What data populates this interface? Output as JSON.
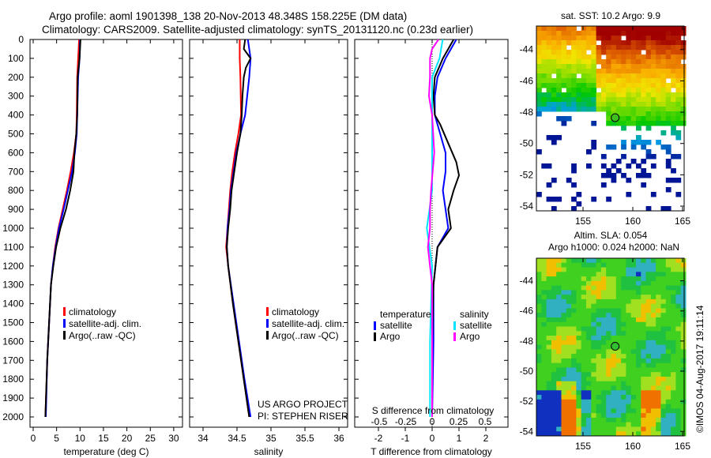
{
  "title_line1": "Argo profile: aoml 1901398_138 20-Nov-2013 48.348S 158.225E (DM data)",
  "title_line2": "Climatology: CARS2009. Satellite-adjusted climatology: synTS_20131120.nc (0.23d earlier)",
  "colors": {
    "climatology": "#ff0000",
    "satellite": "#0000ff",
    "argo": "#000000",
    "sal_satellite": "#00e5ff",
    "sal_argo": "#ff00ff"
  },
  "chart_data": [
    {
      "type": "line",
      "xlabel": "temperature (deg C)",
      "xlim": [
        -0.5,
        31.5
      ],
      "xticks": [
        "0",
        "5",
        "10",
        "15",
        "20",
        "25",
        "30"
      ],
      "ylim": [
        2050,
        0
      ],
      "yticks": [
        "0",
        "100",
        "200",
        "300",
        "400",
        "500",
        "600",
        "700",
        "800",
        "900",
        "1000",
        "1100",
        "1200",
        "1300",
        "1400",
        "1500",
        "1600",
        "1700",
        "1800",
        "1900",
        "2000"
      ],
      "legend": [
        "climatology",
        "satellite-adj. clim.",
        "Argo(..raw -QC)"
      ],
      "series": [
        {
          "name": "climatology",
          "points": [
            [
              0,
              9.8
            ],
            [
              100,
              9.6
            ],
            [
              200,
              9.4
            ],
            [
              400,
              9.3
            ],
            [
              500,
              9.2
            ],
            [
              600,
              8.7
            ],
            [
              700,
              8.0
            ],
            [
              800,
              7.2
            ],
            [
              900,
              6.3
            ],
            [
              1000,
              5.4
            ],
            [
              1100,
              4.7
            ],
            [
              1200,
              4.2
            ],
            [
              1300,
              3.8
            ],
            [
              1500,
              3.4
            ],
            [
              1700,
              3.0
            ],
            [
              2000,
              2.6
            ]
          ]
        },
        {
          "name": "satellite-adj. clim.",
          "points": [
            [
              0,
              10.0
            ],
            [
              100,
              9.9
            ],
            [
              200,
              9.6
            ],
            [
              400,
              9.4
            ],
            [
              500,
              9.3
            ],
            [
              600,
              8.9
            ],
            [
              700,
              8.3
            ],
            [
              800,
              7.4
            ],
            [
              900,
              6.5
            ],
            [
              1000,
              5.5
            ],
            [
              1100,
              4.8
            ],
            [
              1200,
              4.2
            ],
            [
              1300,
              3.8
            ],
            [
              1500,
              3.4
            ],
            [
              1700,
              3.0
            ],
            [
              2000,
              2.7
            ]
          ]
        },
        {
          "name": "Argo(..raw -QC)",
          "points": [
            [
              0,
              10.1
            ],
            [
              100,
              9.9
            ],
            [
              200,
              9.5
            ],
            [
              400,
              9.4
            ],
            [
              500,
              9.2
            ],
            [
              600,
              8.8
            ],
            [
              700,
              8.6
            ],
            [
              800,
              7.9
            ],
            [
              900,
              7.0
            ],
            [
              1000,
              5.8
            ],
            [
              1100,
              4.9
            ],
            [
              1200,
              4.3
            ],
            [
              1300,
              3.8
            ],
            [
              1500,
              3.4
            ],
            [
              1700,
              3.0
            ],
            [
              2000,
              2.6
            ]
          ]
        }
      ]
    },
    {
      "type": "line",
      "xlabel": "salinity",
      "xlim": [
        33.9,
        36.1
      ],
      "xticks": [
        "34",
        "34.5",
        "35",
        "35.5",
        "36"
      ],
      "ylim": [
        2050,
        0
      ],
      "legend": [
        "climatology",
        "satellite-adj. clim.",
        "Argo(..raw -QC)"
      ],
      "annotation": [
        "US ARGO PROJECT",
        "PI: STEPHEN RISER"
      ],
      "series": [
        {
          "name": "climatology",
          "points": [
            [
              0,
              34.54
            ],
            [
              100,
              34.54
            ],
            [
              200,
              34.55
            ],
            [
              400,
              34.56
            ],
            [
              500,
              34.52
            ],
            [
              600,
              34.47
            ],
            [
              700,
              34.43
            ],
            [
              800,
              34.4
            ],
            [
              900,
              34.38
            ],
            [
              1000,
              34.36
            ],
            [
              1100,
              34.34
            ],
            [
              1200,
              34.37
            ],
            [
              1400,
              34.44
            ],
            [
              1600,
              34.52
            ],
            [
              1800,
              34.6
            ],
            [
              2000,
              34.68
            ]
          ]
        },
        {
          "name": "satellite-adj. clim.",
          "points": [
            [
              0,
              34.66
            ],
            [
              100,
              34.7
            ],
            [
              200,
              34.68
            ],
            [
              400,
              34.62
            ],
            [
              500,
              34.55
            ],
            [
              600,
              34.49
            ],
            [
              700,
              34.45
            ],
            [
              800,
              34.41
            ],
            [
              900,
              34.39
            ],
            [
              1000,
              34.36
            ],
            [
              1100,
              34.35
            ],
            [
              1200,
              34.37
            ],
            [
              1400,
              34.45
            ],
            [
              1600,
              34.53
            ],
            [
              1800,
              34.61
            ],
            [
              2000,
              34.7
            ]
          ]
        },
        {
          "name": "Argo(..raw -QC)",
          "points": [
            [
              0,
              34.62
            ],
            [
              50,
              34.6
            ],
            [
              100,
              34.7
            ],
            [
              150,
              34.63
            ],
            [
              200,
              34.6
            ],
            [
              300,
              34.58
            ],
            [
              400,
              34.57
            ],
            [
              500,
              34.55
            ],
            [
              600,
              34.5
            ],
            [
              700,
              34.46
            ],
            [
              800,
              34.42
            ],
            [
              900,
              34.4
            ],
            [
              1000,
              34.37
            ],
            [
              1100,
              34.35
            ],
            [
              1200,
              34.37
            ],
            [
              1400,
              34.44
            ],
            [
              1600,
              34.52
            ],
            [
              1800,
              34.6
            ],
            [
              2000,
              34.68
            ]
          ]
        }
      ]
    },
    {
      "type": "line",
      "xlabel": "T difference from climatology",
      "xlim": [
        -2.9,
        2.9
      ],
      "xticks": [
        "-2",
        "-1",
        "0",
        "1",
        "2"
      ],
      "x2label": "S difference from climatology",
      "x2ticks": [
        "-0.5",
        "-0.25",
        "0",
        "0.25",
        "0.5"
      ],
      "ylim": [
        2050,
        0
      ],
      "legend": {
        "temperature_header": "temperature",
        "salinity_header": "salinity",
        "t_satellite": "satellite",
        "t_argo": "Argo",
        "s_satellite": "satellite",
        "s_argo": "Argo"
      },
      "series": [
        {
          "name": "T satellite",
          "points": [
            [
              0,
              0.9
            ],
            [
              50,
              0.7
            ],
            [
              100,
              0.5
            ],
            [
              200,
              0.2
            ],
            [
              300,
              0.1
            ],
            [
              400,
              0.1
            ],
            [
              500,
              0.3
            ],
            [
              600,
              0.5
            ],
            [
              700,
              0.5
            ],
            [
              800,
              0.4
            ],
            [
              900,
              0.5
            ],
            [
              1000,
              0.6
            ],
            [
              1100,
              0.2
            ],
            [
              1300,
              0.05
            ],
            [
              1600,
              0.05
            ],
            [
              2000,
              0.0
            ]
          ]
        },
        {
          "name": "T Argo",
          "points": [
            [
              0,
              0.8
            ],
            [
              50,
              0.6
            ],
            [
              100,
              0.4
            ],
            [
              200,
              0.1
            ],
            [
              300,
              0.05
            ],
            [
              400,
              0.1
            ],
            [
              450,
              0.3
            ],
            [
              550,
              0.6
            ],
            [
              650,
              0.9
            ],
            [
              720,
              1.0
            ],
            [
              800,
              0.8
            ],
            [
              900,
              0.6
            ],
            [
              1000,
              0.7
            ],
            [
              1100,
              0.2
            ],
            [
              1300,
              0.05
            ],
            [
              1600,
              0.0
            ],
            [
              2000,
              0.0
            ]
          ]
        },
        {
          "name": "S satellite",
          "points": [
            [
              0,
              0.1
            ],
            [
              100,
              0.07
            ],
            [
              200,
              0.0
            ],
            [
              300,
              0.0
            ],
            [
              400,
              0.0
            ],
            [
              600,
              0.0
            ],
            [
              800,
              0.0
            ],
            [
              1000,
              -0.05
            ],
            [
              1200,
              0.0
            ],
            [
              1600,
              -0.02
            ],
            [
              2000,
              -0.02
            ]
          ]
        },
        {
          "name": "S Argo",
          "points": [
            [
              0,
              0.06
            ],
            [
              50,
              0.0
            ],
            [
              100,
              -0.02
            ],
            [
              200,
              -0.02
            ],
            [
              300,
              -0.03
            ],
            [
              400,
              0.0
            ],
            [
              600,
              0.02
            ],
            [
              800,
              -0.01
            ],
            [
              900,
              -0.02
            ],
            [
              1000,
              -0.02
            ],
            [
              1100,
              -0.04
            ],
            [
              1300,
              0.0
            ],
            [
              1600,
              0.0
            ],
            [
              2000,
              0.0
            ]
          ]
        }
      ]
    },
    {
      "type": "heatmap",
      "title": "sat. SST: 10.2 Argo: 9.9",
      "xlim": [
        150.5,
        166
      ],
      "ylim": [
        -54.3,
        -42.5
      ],
      "xticks": [
        "155",
        "160",
        "165"
      ],
      "yticks": [
        "-44",
        "-46",
        "-48",
        "-50",
        "-52",
        "-54"
      ],
      "marker": {
        "lon": 158.225,
        "lat": -48.348
      }
    },
    {
      "type": "heatmap",
      "title": "Altim. SLA: 0.054",
      "subtitle": "Argo h1000: 0.024 h2000: NaN",
      "xlim": [
        150.5,
        166
      ],
      "ylim": [
        -54.3,
        -42.5
      ],
      "xticks": [
        "155",
        "160",
        "165"
      ],
      "yticks": [
        "-44",
        "-46",
        "-48",
        "-50",
        "-52",
        "-54"
      ],
      "marker": {
        "lon": 158.225,
        "lat": -48.348
      }
    }
  ],
  "watermark": "©IMOS 04-Aug-2017 19:11:14"
}
